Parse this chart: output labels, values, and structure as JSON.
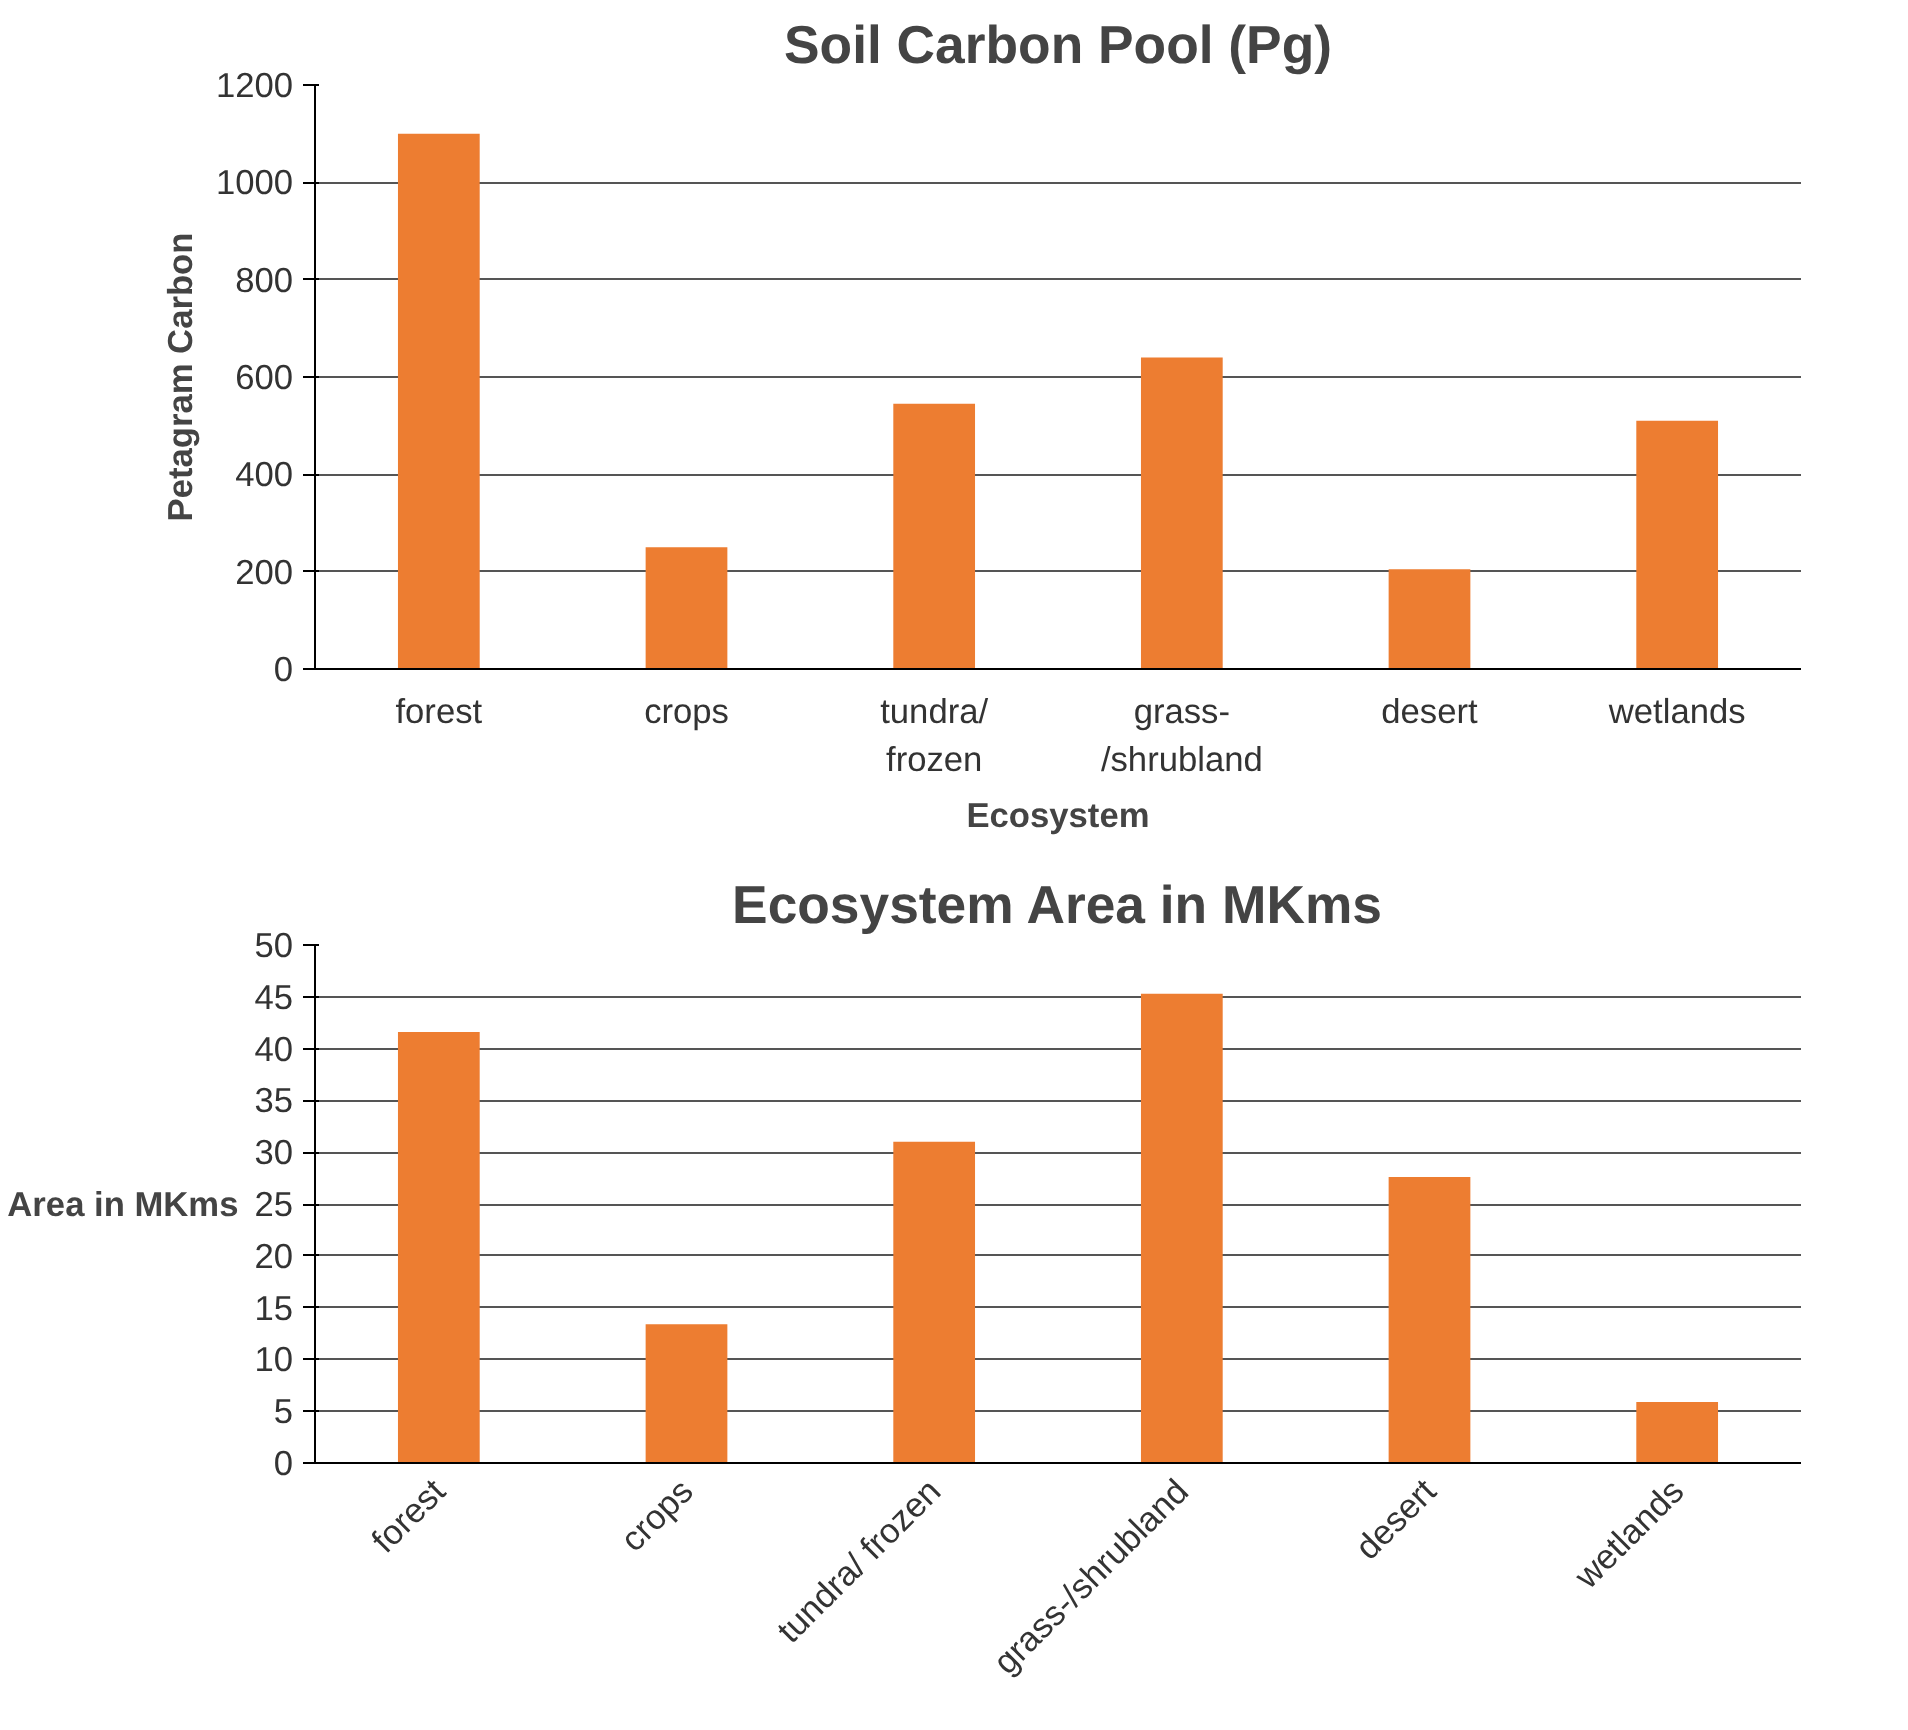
{
  "chart_data": [
    {
      "type": "bar",
      "title": "Soil Carbon Pool (Pg)",
      "xlabel": "Ecosystem",
      "ylabel": "Petagram Carbon",
      "categories": [
        "forest",
        "crops",
        "tundra/ frozen",
        "grass-/shrubland",
        "desert",
        "wetlands"
      ],
      "values": [
        1100,
        250,
        545,
        640,
        205,
        510
      ],
      "color": "#ed7d31",
      "ylim": [
        0,
        1200
      ],
      "yticks": [
        0,
        200,
        400,
        600,
        800,
        1000,
        1200
      ],
      "grid": "y"
    },
    {
      "type": "bar",
      "title": "Ecosystem Area in MKms",
      "ylabel": "Area in MKms",
      "categories": [
        "forest",
        "crops",
        "tundra/ frozen",
        "grass-/shrubland",
        "desert",
        "wetlands"
      ],
      "values": [
        41.6,
        13.4,
        31,
        45.3,
        27.6,
        5.9
      ],
      "color": "#ed7d31",
      "ylim": [
        0,
        50
      ],
      "yticks": [
        0,
        5,
        10,
        15,
        20,
        25,
        30,
        35,
        40,
        45,
        50
      ],
      "grid": "y"
    }
  ]
}
